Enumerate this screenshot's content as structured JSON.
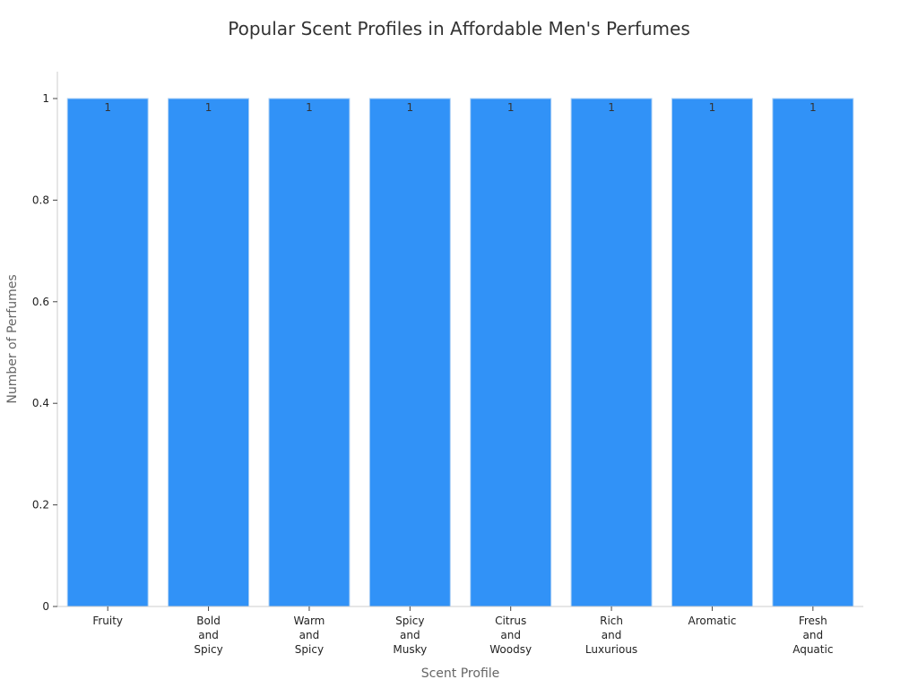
{
  "chart_data": {
    "type": "bar",
    "title": "Popular Scent Profiles in Affordable Men's Perfumes",
    "xlabel": "Scent Profile",
    "ylabel": "Number of Perfumes",
    "categories": [
      "Fruity",
      "Bold and Spicy",
      "Warm and Spicy",
      "Spicy and Musky",
      "Citrus and Woodsy",
      "Rich and Luxurious",
      "Aromatic",
      "Fresh and Aquatic"
    ],
    "values": [
      1,
      1,
      1,
      1,
      1,
      1,
      1,
      1
    ],
    "ylim": [
      0,
      1
    ],
    "yticks": [
      "0",
      "0.2",
      "0.4",
      "0.6",
      "0.8",
      "1"
    ],
    "grid": false,
    "bar_color": "#3192F7",
    "bar_edge_color": "#A9CFF5"
  }
}
